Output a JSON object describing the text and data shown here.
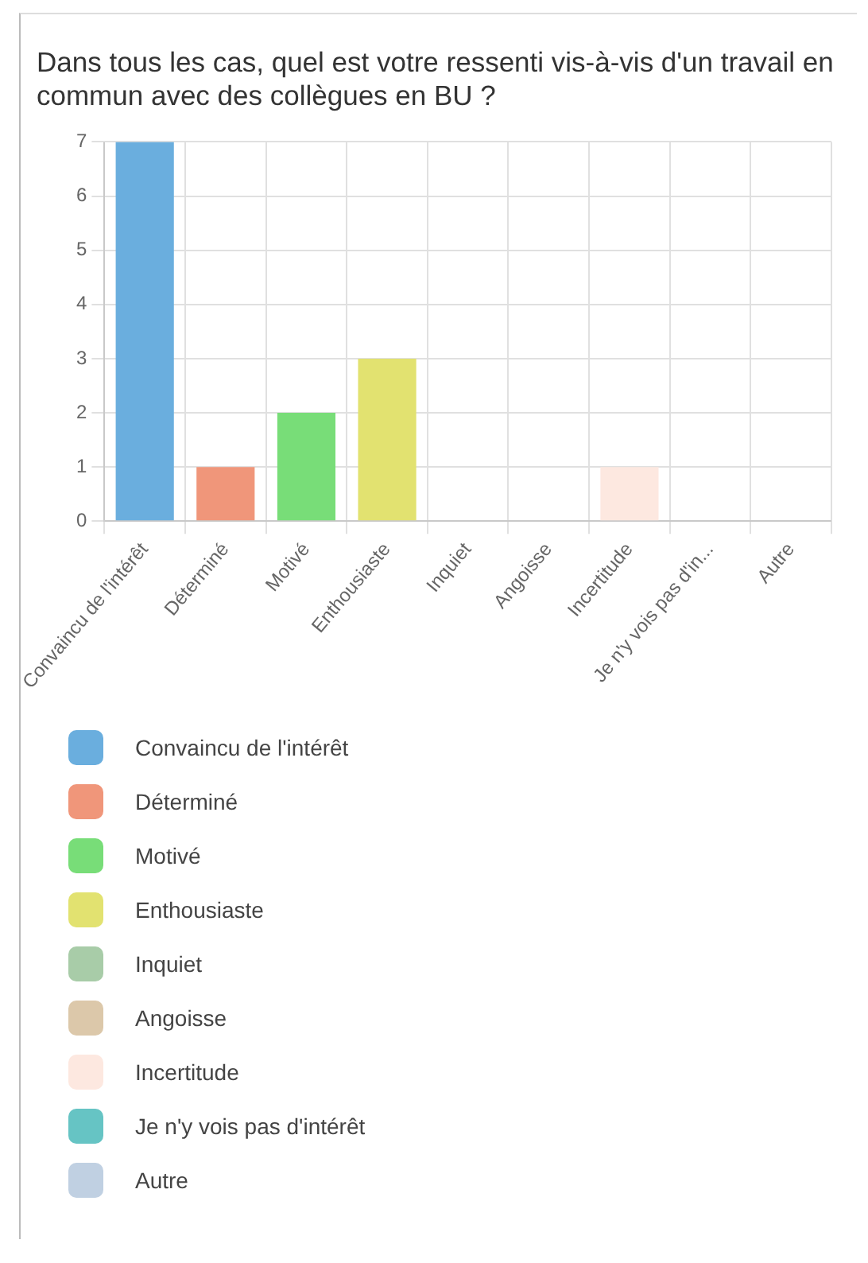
{
  "chart_data": {
    "type": "bar",
    "title": "Dans tous les cas, quel est votre ressenti vis-à-vis d'un travail en commun avec des collègues en BU ?",
    "categories": [
      "Convaincu de l'intérêt",
      "Déterminé",
      "Motivé",
      "Enthousiaste",
      "Inquiet",
      "Angoisse",
      "Incertitude",
      "Je n'y vois pas d'in...",
      "Autre"
    ],
    "series": [
      {
        "name": "Convaincu de l'intérêt",
        "color": "#6aaede",
        "values": [
          7,
          null,
          null,
          null,
          null,
          null,
          null,
          null,
          null
        ]
      },
      {
        "name": "Déterminé",
        "color": "#f0967a",
        "values": [
          null,
          1,
          null,
          null,
          null,
          null,
          null,
          null,
          null
        ]
      },
      {
        "name": "Motivé",
        "color": "#78dd78",
        "values": [
          null,
          null,
          2,
          null,
          null,
          null,
          null,
          null,
          null
        ]
      },
      {
        "name": "Enthousiaste",
        "color": "#e2e270",
        "values": [
          null,
          null,
          null,
          3,
          null,
          null,
          null,
          null,
          null
        ]
      },
      {
        "name": "Inquiet",
        "color": "#a8cca8",
        "values": [
          null,
          null,
          null,
          null,
          0,
          null,
          null,
          null,
          null
        ]
      },
      {
        "name": "Angoisse",
        "color": "#dcc8aa",
        "values": [
          null,
          null,
          null,
          null,
          null,
          0,
          null,
          null,
          null
        ]
      },
      {
        "name": "Incertitude",
        "color": "#fde8e0",
        "values": [
          null,
          null,
          null,
          null,
          null,
          null,
          1,
          null,
          null
        ]
      },
      {
        "name": "Je n'y vois pas d'intérêt",
        "color": "#66c4c4",
        "values": [
          null,
          null,
          null,
          null,
          null,
          null,
          null,
          0,
          null
        ]
      },
      {
        "name": "Autre",
        "color": "#c0d0e2",
        "values": [
          null,
          null,
          null,
          null,
          null,
          null,
          null,
          null,
          0
        ]
      }
    ],
    "ylim": [
      0,
      7
    ],
    "yticks": [
      0,
      1,
      2,
      3,
      4,
      5,
      6,
      7
    ],
    "grid": true,
    "legend": "bottom"
  }
}
